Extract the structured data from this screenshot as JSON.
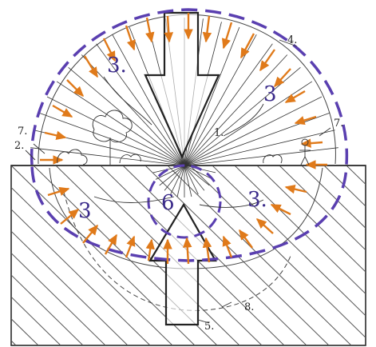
{
  "colors": {
    "paper": "#ffffff",
    "ink": "#2a2a2a",
    "hatch": "#555555",
    "dome": "#5a3fb0",
    "arrows": "#e07a1a",
    "zone_label": "#3a2a8a"
  },
  "labels": {
    "n2": "2.",
    "n4": "4.",
    "n5": "5.",
    "n6": "6",
    "n7_left": "7.",
    "n7_right": "7.",
    "n8": "8.",
    "n1": "1.",
    "zone_upper_left": "3.",
    "zone_upper_right": "3",
    "zone_lower_left": "3",
    "zone_lower_right": "3."
  },
  "icons": [
    "tree-sketch",
    "bush-sketch",
    "human-figure-sketch",
    "ground-hatching"
  ]
}
